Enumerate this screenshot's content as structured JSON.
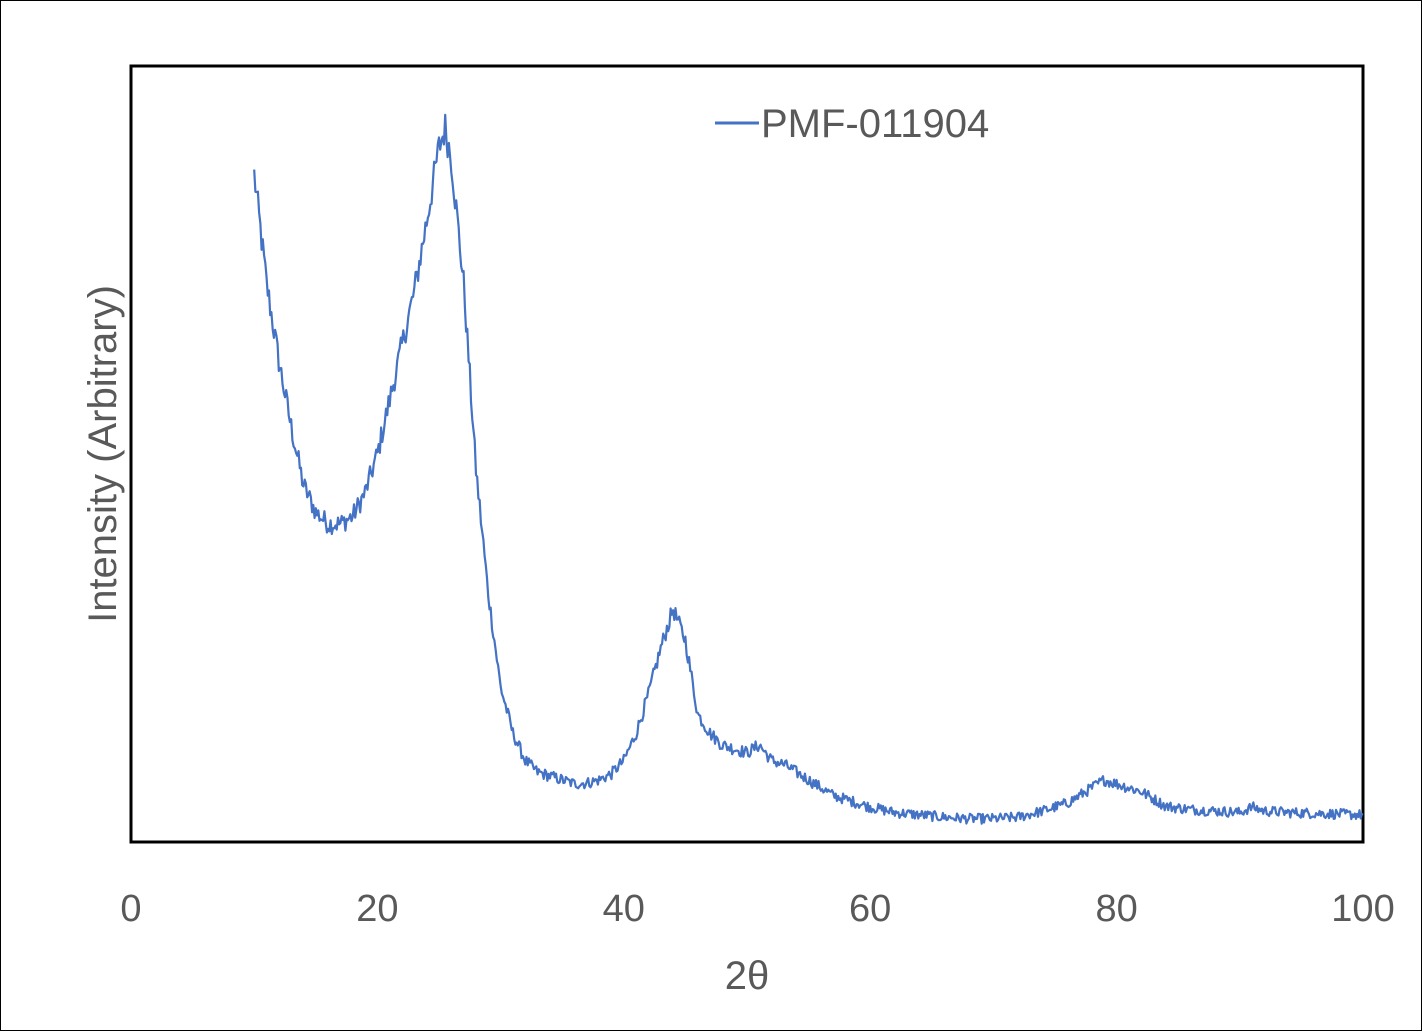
{
  "chart_data": {
    "type": "line",
    "title": "",
    "xlabel": "2θ",
    "ylabel": "Intensity (Arbitrary)",
    "xlim": [
      0,
      100
    ],
    "ylim": [
      0,
      100
    ],
    "x_ticks": [
      "0",
      "20",
      "40",
      "60",
      "80",
      "100"
    ],
    "y_ticks": [],
    "grid": false,
    "legend_position": "top-right",
    "series": [
      {
        "name": "PMF-011904",
        "color": "#4472C4",
        "x": [
          10,
          11,
          12,
          13,
          14,
          15,
          16,
          17,
          18,
          19,
          20,
          21,
          22,
          23,
          24,
          25,
          25.5,
          26,
          27,
          28,
          29,
          30,
          31,
          32,
          33,
          34,
          35,
          36,
          37,
          38,
          39,
          40,
          41,
          42,
          43,
          44,
          45,
          46,
          47,
          48,
          49,
          50,
          51,
          52,
          53,
          54,
          55,
          56,
          57,
          58,
          59,
          60,
          62,
          64,
          66,
          68,
          70,
          72,
          74,
          76,
          78,
          79,
          80,
          81,
          82,
          84,
          86,
          88,
          90,
          91,
          92,
          94,
          96,
          98,
          100
        ],
        "y": [
          86.0,
          72.0,
          62.0,
          53.5,
          46.0,
          42.5,
          41.0,
          41.0,
          42.0,
          45.0,
          50.0,
          57.0,
          64.0,
          71.0,
          80.0,
          89.5,
          92.0,
          88.0,
          72.0,
          48.0,
          32.0,
          20.0,
          14.0,
          10.5,
          9.0,
          8.5,
          8.0,
          7.5,
          7.6,
          8.0,
          8.8,
          10.5,
          14.0,
          19.0,
          25.0,
          30.0,
          26.0,
          16.5,
          14.0,
          12.5,
          12.0,
          11.5,
          12.5,
          10.5,
          10.0,
          9.0,
          8.0,
          7.0,
          6.0,
          5.5,
          5.0,
          4.5,
          3.8,
          3.5,
          3.2,
          3.0,
          3.0,
          3.2,
          4.0,
          5.0,
          7.0,
          8.0,
          7.5,
          7.0,
          6.5,
          4.6,
          4.2,
          4.0,
          3.8,
          4.5,
          4.0,
          3.8,
          3.7,
          3.6,
          3.5
        ]
      }
    ]
  }
}
